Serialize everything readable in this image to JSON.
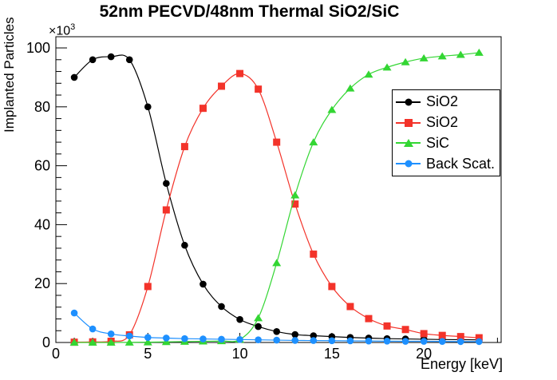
{
  "title": "52nm PECVD/48nm Thermal SiO2/SiC",
  "y_multiplier_base": "×10",
  "y_multiplier_exp": "3",
  "chart_data": {
    "type": "line",
    "title": "52nm PECVD/48nm Thermal SiO2/SiC",
    "xlabel": "Energy [keV]",
    "ylabel": "Implanted Particles",
    "y_unit_multiplier": "×10^3",
    "xlim": [
      0,
      24.2
    ],
    "ylim": [
      0,
      103.8
    ],
    "x_major_ticks": [
      0,
      5,
      10,
      15,
      20
    ],
    "x_minor_step": 1,
    "y_major_ticks": [
      0,
      20,
      40,
      60,
      80,
      100
    ],
    "y_minor_step": 4,
    "grid": "off",
    "legend_position": "right-center",
    "x": [
      1,
      2,
      3,
      4,
      5,
      6,
      7,
      8,
      9,
      10,
      11,
      12,
      13,
      14,
      15,
      16,
      17,
      18,
      19,
      20,
      21,
      22,
      23
    ],
    "series": [
      {
        "name": "SiO2",
        "color": "#000000",
        "marker": "circle",
        "values": [
          90,
          96,
          97,
          96,
          80,
          54,
          33,
          19.8,
          12.2,
          7.8,
          5.4,
          3.7,
          2.7,
          2.3,
          2.0,
          1.7,
          1.5,
          1.3,
          1.2,
          1.1,
          1.0,
          0.95,
          0.9
        ]
      },
      {
        "name": "SiO2",
        "color": "#f3332a",
        "marker": "square",
        "values": [
          0.1,
          0.2,
          0.4,
          2.6,
          19,
          45,
          66.5,
          79.5,
          87,
          91.3,
          86,
          68,
          47,
          30,
          19,
          12.2,
          8.1,
          5.6,
          4.4,
          3.0,
          2.4,
          2.0,
          1.6
        ]
      },
      {
        "name": "SiC",
        "color": "#33d633",
        "marker": "triangle",
        "values": [
          0,
          0,
          0,
          0.05,
          0.1,
          0.2,
          0.3,
          0.4,
          0.5,
          1.0,
          8.3,
          27,
          50,
          68,
          79,
          86.3,
          91,
          93.4,
          95.2,
          96.5,
          97.2,
          97.7,
          98.4
        ]
      },
      {
        "name": "Back Scat.",
        "color": "#1e90ff",
        "marker": "circle",
        "values": [
          10,
          4.6,
          2.9,
          2.2,
          1.7,
          1.5,
          1.3,
          1.2,
          1.1,
          1.0,
          0.9,
          0.8,
          0.7,
          0.65,
          0.6,
          0.55,
          0.5,
          0.45,
          0.4,
          0.4,
          0.35,
          0.3,
          0.3
        ]
      }
    ]
  }
}
